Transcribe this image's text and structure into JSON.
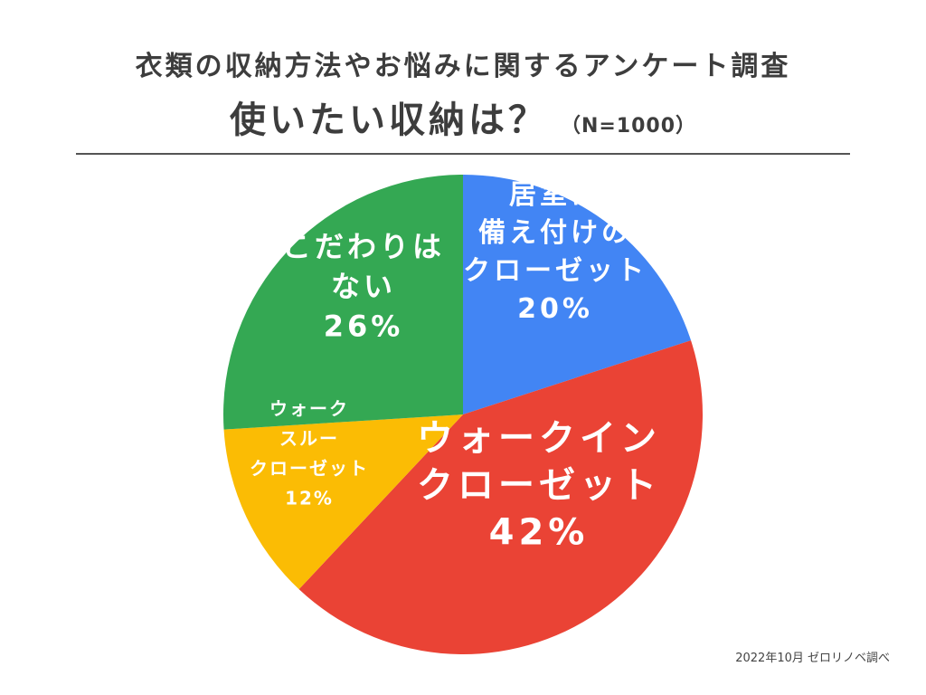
{
  "header": {
    "title_line1": "衣類の収納方法やお悩みに関するアンケート調査",
    "title_main": "使いたい収納は？",
    "sample_size": "（N=1000）"
  },
  "source_note": "2022年10月 ゼロリノベ調べ",
  "chart_data": {
    "type": "pie",
    "title": "使いたい収納は？",
    "slices": [
      {
        "label_lines": [
          "居室に",
          "備え付けの",
          "クローゼット",
          "20%"
        ],
        "value": 20,
        "color": "#4285F4"
      },
      {
        "label_lines": [
          "ウォークイン",
          "クローゼット",
          "42%"
        ],
        "value": 42,
        "color": "#EA4335"
      },
      {
        "label_lines": [
          "ウォーク",
          "スルー",
          "クローゼット",
          "12%"
        ],
        "value": 12,
        "color": "#FBBC04"
      },
      {
        "label_lines": [
          "こだわりは",
          "ない",
          "26%"
        ],
        "value": 26,
        "color": "#34A853"
      }
    ]
  }
}
